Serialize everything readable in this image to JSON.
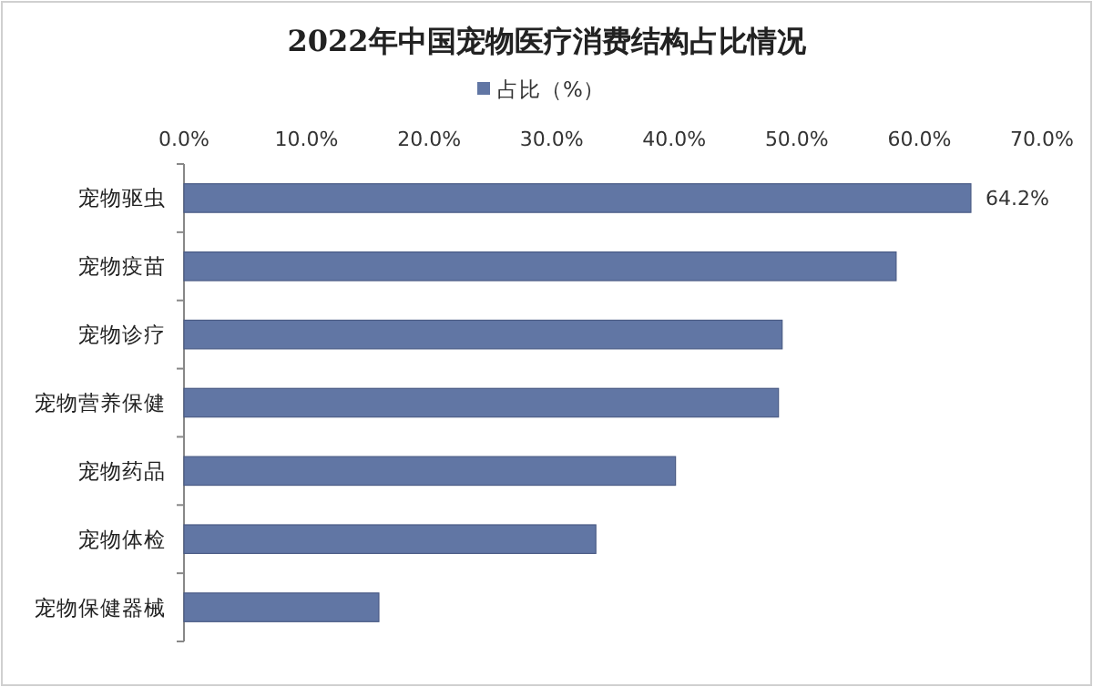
{
  "chart_data": {
    "type": "bar",
    "orientation": "horizontal",
    "title": "2022年中国宠物医疗消费结构占比情况",
    "categories": [
      "宠物驱虫",
      "宠物疫苗",
      "宠物诊疗",
      "宠物营养保健",
      "宠物药品",
      "宠物体检",
      "宠物保健器械"
    ],
    "series": [
      {
        "name": "占比（%）",
        "color": "#6176a4",
        "values": [
          64.2,
          58.1,
          48.8,
          48.5,
          40.1,
          33.6,
          15.9
        ],
        "value_labels": [
          "64.2%",
          null,
          null,
          null,
          null,
          null,
          null
        ]
      }
    ],
    "xlim": [
      0,
      70
    ],
    "xticks": [
      {
        "value": 0,
        "label": "0.0%"
      },
      {
        "value": 10,
        "label": "10.0%"
      },
      {
        "value": 20,
        "label": "20.0%"
      },
      {
        "value": 30,
        "label": "30.0%"
      },
      {
        "value": 40,
        "label": "40.0%"
      },
      {
        "value": 50,
        "label": "50.0%"
      },
      {
        "value": 60,
        "label": "60.0%"
      },
      {
        "value": 70,
        "label": "70.0%"
      }
    ],
    "legend": "top",
    "grid": false
  }
}
